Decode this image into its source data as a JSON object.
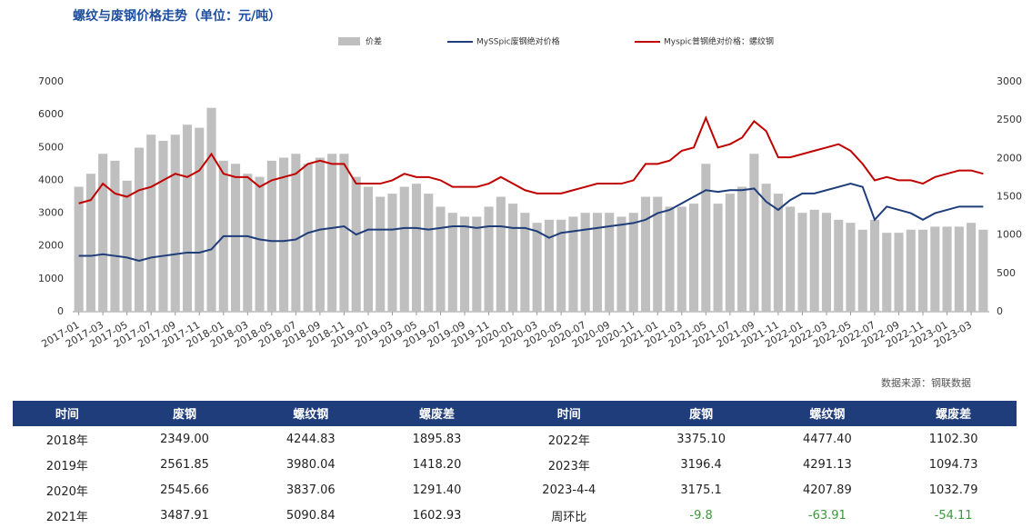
{
  "chart_data": {
    "type": "combo",
    "title": "螺纹与废钢价格走势（单位：元/吨）",
    "source": "数据来源：钢联数据",
    "categories": [
      "2017-01",
      null,
      "2017-03",
      null,
      "2017-05",
      null,
      "2017-07",
      null,
      "2017-09",
      null,
      "2017-11",
      null,
      "2018-01",
      null,
      "2018-03",
      null,
      "2018-05",
      null,
      "2018-07",
      null,
      "2018-09",
      null,
      "2018-11",
      null,
      "2019-01",
      null,
      "2019-03",
      null,
      "2019-05",
      null,
      "2019-07",
      null,
      "2019-09",
      null,
      "2019-11",
      null,
      "2020-01",
      null,
      "2020-03",
      null,
      "2020-05",
      null,
      "2020-07",
      null,
      "2020-09",
      null,
      "2020-11",
      null,
      "2021-01",
      null,
      "2021-03",
      null,
      "2021-05",
      null,
      "2021-07",
      null,
      "2021-09",
      null,
      "2021-11",
      null,
      "2022-01",
      null,
      "2022-03",
      null,
      "2022-05",
      null,
      "2022-07",
      null,
      "2022-09",
      null,
      "2022-11",
      null,
      "2023-01",
      null,
      "2023-03",
      null
    ],
    "ylim": [
      0,
      7000
    ],
    "yticks": [
      0,
      1000,
      2000,
      3000,
      4000,
      5000,
      6000,
      7000
    ],
    "y2lim": [
      0,
      3000
    ],
    "y2ticks": [
      0,
      500,
      1000,
      1500,
      2000,
      2500,
      3000
    ],
    "series": [
      {
        "name": "价差",
        "type": "bar",
        "axis": "y2",
        "color": "#bfbfbf",
        "values": [
          1630,
          1800,
          2060,
          1970,
          1710,
          2140,
          2310,
          2230,
          2310,
          2440,
          2400,
          2660,
          1970,
          1930,
          1800,
          1760,
          1970,
          2010,
          2060,
          1930,
          2010,
          2060,
          2060,
          1760,
          1630,
          1500,
          1540,
          1630,
          1670,
          1540,
          1370,
          1290,
          1240,
          1240,
          1370,
          1500,
          1410,
          1290,
          1160,
          1200,
          1200,
          1240,
          1290,
          1290,
          1290,
          1240,
          1290,
          1500,
          1500,
          1370,
          1370,
          1410,
          1930,
          1410,
          1540,
          1630,
          2060,
          1670,
          1540,
          1370,
          1290,
          1330,
          1290,
          1200,
          1160,
          1070,
          1200,
          1030,
          1030,
          1070,
          1070,
          1110,
          1110,
          1110,
          1160,
          1070
        ]
      },
      {
        "name": "MySSpic废钢绝对价格",
        "type": "line",
        "color": "#1f3d7a",
        "values": [
          1700,
          1700,
          1750,
          1700,
          1650,
          1550,
          1650,
          1700,
          1750,
          1800,
          1800,
          1900,
          2300,
          2300,
          2300,
          2200,
          2150,
          2150,
          2200,
          2400,
          2500,
          2550,
          2600,
          2350,
          2500,
          2500,
          2500,
          2550,
          2550,
          2500,
          2550,
          2600,
          2600,
          2550,
          2600,
          2600,
          2550,
          2550,
          2450,
          2250,
          2400,
          2450,
          2500,
          2550,
          2600,
          2650,
          2700,
          2800,
          3000,
          3100,
          3300,
          3500,
          3700,
          3650,
          3700,
          3700,
          3750,
          3350,
          3100,
          3400,
          3600,
          3600,
          3700,
          3800,
          3900,
          3800,
          2800,
          3200,
          3100,
          3000,
          2800,
          3000,
          3100,
          3200,
          3200,
          3200
        ]
      },
      {
        "name": "Myspic普钢绝对价格：螺纹钢",
        "type": "line",
        "color": "#c00000",
        "values": [
          3300,
          3400,
          3900,
          3600,
          3500,
          3700,
          3800,
          4000,
          4200,
          4100,
          4300,
          4800,
          4200,
          4100,
          4100,
          3800,
          4000,
          4100,
          4200,
          4500,
          4600,
          4500,
          4500,
          3900,
          3900,
          3900,
          4000,
          4200,
          4100,
          4100,
          4000,
          3800,
          3800,
          3800,
          3900,
          4100,
          3900,
          3700,
          3600,
          3600,
          3600,
          3700,
          3800,
          3900,
          3900,
          3900,
          4000,
          4500,
          4500,
          4600,
          4900,
          5000,
          5900,
          5000,
          5100,
          5300,
          5800,
          5500,
          4700,
          4700,
          4800,
          4900,
          5000,
          5100,
          4900,
          4500,
          4000,
          4100,
          4000,
          4000,
          3900,
          4100,
          4200,
          4300,
          4300,
          4200
        ]
      }
    ]
  },
  "table": {
    "header": [
      "时间",
      "废钢",
      "螺纹钢",
      "螺废差",
      "时间",
      "废钢",
      "螺纹钢",
      "螺废差"
    ],
    "rows": [
      [
        "2018年",
        "2349.00",
        "4244.83",
        "1895.83",
        "2022年",
        "3375.10",
        "4477.40",
        "1102.30"
      ],
      [
        "2019年",
        "2561.85",
        "3980.04",
        "1418.20",
        "2023年",
        "3196.4",
        "4291.13",
        "1094.73"
      ],
      [
        "2020年",
        "2545.66",
        "3837.06",
        "1291.40",
        "2023-4-4",
        "3175.1",
        "4207.89",
        "1032.79"
      ],
      [
        "2021年",
        "3487.91",
        "5090.84",
        "1602.93",
        "周环比",
        "-9.8",
        "-63.91",
        "-54.11"
      ]
    ]
  }
}
